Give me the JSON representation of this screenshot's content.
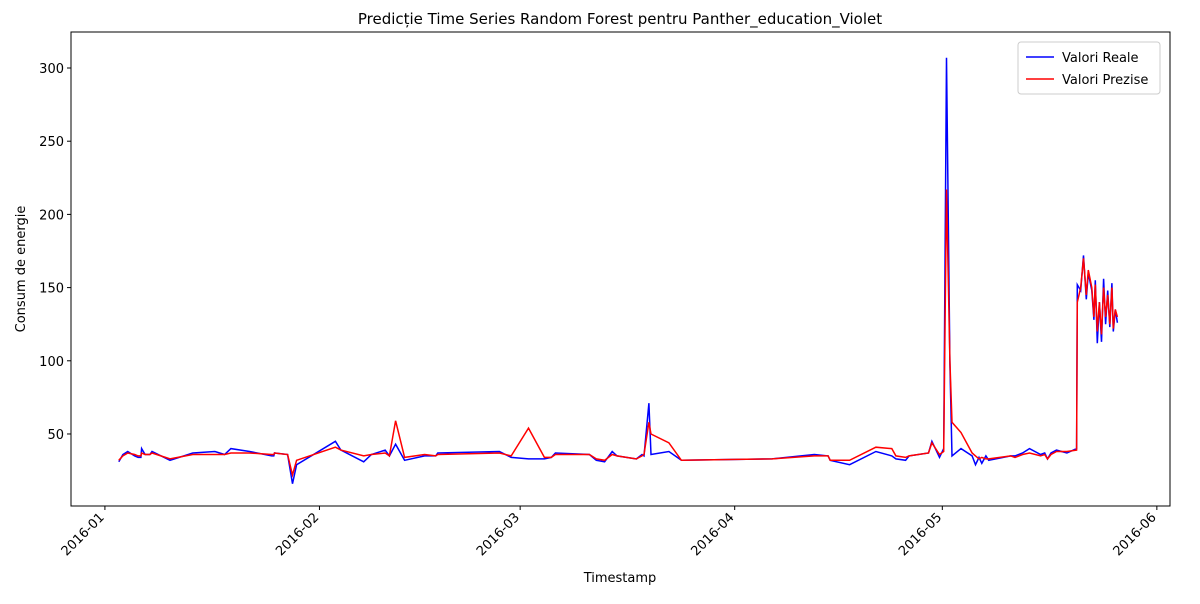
{
  "chart_data": {
    "type": "line",
    "title": "Predicție Time Series Random Forest pentru Panther_education_Violet",
    "xlabel": "Timestamp",
    "ylabel": "Consum de energie",
    "x": [
      2.0,
      2.6,
      3.3,
      4.3,
      4.8,
      5.2,
      5.3,
      5.8,
      6.5,
      6.8,
      9.4,
      12.7,
      15.9,
      17.3,
      18.2,
      20.9,
      24.1,
      24.4,
      24.5,
      26.4,
      27.1,
      27.7,
      33.3,
      34.1,
      37.4,
      38.5,
      40.5,
      41.1,
      42.0,
      43.3,
      46.2,
      47.8,
      48.1,
      57.0,
      58.7,
      61.2,
      63.5,
      64.5,
      65.1,
      70.0,
      71.0,
      72.2,
      73.3,
      74.0,
      76.8,
      77.6,
      77.9,
      78.6,
      78.9,
      81.5,
      83.3,
      96.4,
      102.5,
      104.5,
      104.8,
      107.6,
      111.4,
      113.7,
      114.3,
      115.7,
      116.2,
      119.0,
      119.5,
      120.6,
      121.2,
      121.6,
      122.1,
      122.4,
      123.7,
      125.3,
      125.8,
      126.3,
      126.7,
      127.3,
      127.7,
      130.9,
      131.5,
      132.6,
      133.6,
      135.2,
      135.8,
      136.2,
      136.7,
      137.5,
      139.0,
      140.4,
      140.5,
      141.0,
      141.4,
      141.8,
      142.1,
      142.6,
      142.9,
      143.1,
      143.4,
      143.7,
      144.0,
      144.3,
      144.6,
      144.9,
      145.2,
      145.5,
      145.7,
      146.0,
      146.3
    ],
    "series": [
      {
        "name": "Valori Reale",
        "color": "#0000ff",
        "values": [
          31,
          36,
          38,
          35,
          34,
          34,
          40,
          36,
          36,
          38,
          32,
          37,
          38,
          36,
          40,
          38,
          35,
          35,
          37,
          36,
          16,
          29,
          45,
          39,
          31,
          36,
          39,
          35,
          43,
          32,
          35,
          35,
          37,
          38,
          34,
          33,
          33,
          34,
          37,
          36,
          32,
          31,
          38,
          35,
          33,
          36,
          35,
          71,
          36,
          38,
          32,
          33,
          36,
          35,
          32,
          29,
          38,
          35,
          33,
          32,
          35,
          37,
          45,
          34,
          40,
          307,
          98,
          35,
          40,
          35,
          29,
          34,
          30,
          35,
          32,
          35,
          35,
          37,
          40,
          36,
          37,
          33,
          37,
          39,
          37,
          40,
          152,
          148,
          172,
          142,
          160,
          148,
          128,
          155,
          112,
          140,
          113,
          156,
          125,
          148,
          123,
          153,
          120,
          135,
          126
        ]
      },
      {
        "name": "Valori Prezise",
        "color": "#ff0000",
        "values": [
          32,
          35,
          37,
          36,
          35,
          35,
          37,
          36,
          36,
          37,
          33,
          36,
          36,
          36,
          37,
          37,
          36,
          36,
          37,
          36,
          22,
          32,
          41,
          39,
          35,
          36,
          37,
          35,
          59,
          34,
          36,
          35,
          36,
          37,
          35,
          54,
          34,
          34,
          36,
          36,
          33,
          32,
          36,
          35,
          33,
          35,
          36,
          58,
          50,
          44,
          32,
          33,
          35,
          35,
          32,
          32,
          41,
          40,
          35,
          34,
          35,
          37,
          44,
          36,
          38,
          217,
          100,
          58,
          51,
          37,
          35,
          33,
          34,
          33,
          33,
          35,
          34,
          36,
          37,
          35,
          36,
          33,
          36,
          38,
          38,
          39,
          140,
          150,
          170,
          145,
          162,
          150,
          130,
          152,
          120,
          140,
          118,
          150,
          130,
          145,
          125,
          150,
          122,
          135,
          130
        ]
      }
    ],
    "xlim": [
      -4.9,
      153.9
    ],
    "xticks": [
      {
        "value": 0,
        "label": "2016-01"
      },
      {
        "value": 31,
        "label": "2016-02"
      },
      {
        "value": 60,
        "label": "2016-03"
      },
      {
        "value": 91,
        "label": "2016-04"
      },
      {
        "value": 121,
        "label": "2016-05"
      },
      {
        "value": 152,
        "label": "2016-06"
      }
    ],
    "ylim": [
      0.8,
      324.6
    ],
    "yticks": [
      50,
      100,
      150,
      200,
      250,
      300
    ],
    "grid": false,
    "legend": "upper right"
  }
}
